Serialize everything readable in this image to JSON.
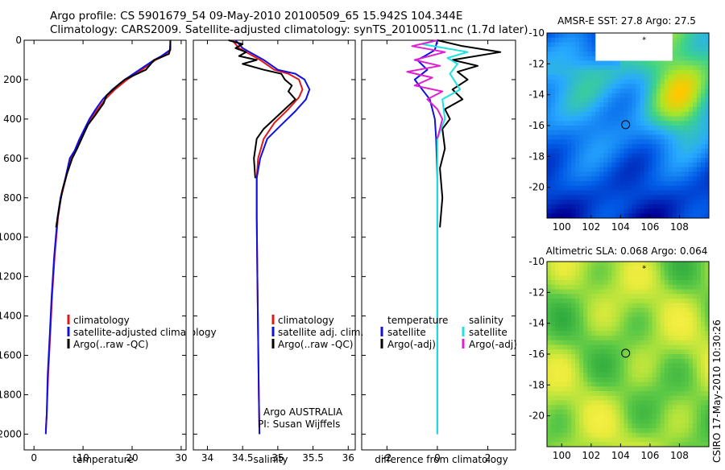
{
  "header": {
    "line1": "Argo profile: CS 5901679_54 09-May-2010 20100509_65 15.942S 104.344E",
    "line2": "Climatology: CARS2009. Satellite-adjusted climatology: synTS_20100511.nc (1.7d later)"
  },
  "footer": {
    "credit": "CSIRO 17-May-2010 10:30:26"
  },
  "colors": {
    "climatology": "#e01818",
    "satellite": "#1010e0",
    "argo": "#000000",
    "satellite_salinity": "#20e0e0",
    "argo_salinity": "#e020d0"
  },
  "chart_data": [
    {
      "id": "temperature",
      "type": "line",
      "xlabel": "temperature",
      "ylabel": "",
      "xlim": [
        -2,
        31
      ],
      "ylim": [
        2080,
        0
      ],
      "y_inverted": true,
      "xticks": [
        0,
        10,
        20,
        30
      ],
      "yticks": [
        0,
        200,
        400,
        600,
        800,
        1000,
        1200,
        1400,
        1600,
        1800,
        2000
      ],
      "legend": {
        "placement": "lower-center",
        "entries": [
          "climatology",
          "satellite-adjusted climatology",
          "Argo(..raw -QC)"
        ]
      },
      "series": [
        {
          "name": "climatology",
          "color": "#e01818",
          "x": [
            27.8,
            27.8,
            26.5,
            24.8,
            22,
            19,
            16.5,
            14.5,
            13,
            11.5,
            9.5,
            8.5,
            7.5,
            6.5,
            5.5,
            4.9,
            4.2,
            3.7,
            3.3,
            2.9,
            2.6,
            2.4
          ],
          "y": [
            0,
            50,
            80,
            100,
            150,
            200,
            250,
            300,
            350,
            400,
            500,
            560,
            600,
            700,
            800,
            900,
            1100,
            1300,
            1500,
            1700,
            1900,
            1980
          ]
        },
        {
          "name": "satellite-adjusted climatology",
          "color": "#1010e0",
          "x": [
            27.8,
            27.7,
            26,
            24.5,
            21.5,
            18.5,
            16,
            14,
            12.6,
            11.3,
            9.3,
            8.3,
            7.3,
            6.4,
            5.4,
            4.8,
            4.1,
            3.6,
            3.2,
            2.8,
            2.6,
            2.4
          ],
          "y": [
            0,
            50,
            80,
            100,
            150,
            200,
            250,
            300,
            350,
            400,
            500,
            560,
            600,
            700,
            800,
            900,
            1100,
            1300,
            1500,
            1700,
            1900,
            2000
          ]
        },
        {
          "name": "Argo(..raw -QC)",
          "color": "#000000",
          "x": [
            27.8,
            27.8,
            27.5,
            24.5,
            22.8,
            18.5,
            17.5,
            14.8,
            14.2,
            12.5,
            11,
            9.7,
            8.8,
            7.8,
            6.7,
            5.8,
            5.2,
            4.5
          ],
          "y": [
            0,
            40,
            70,
            100,
            150,
            200,
            220,
            280,
            320,
            380,
            430,
            500,
            550,
            600,
            680,
            760,
            840,
            950
          ]
        }
      ],
      "annotations": []
    },
    {
      "id": "salinity",
      "type": "line",
      "xlabel": "salinity",
      "ylabel": "",
      "xlim": [
        33.8,
        36.1
      ],
      "ylim": [
        2080,
        0
      ],
      "y_inverted": true,
      "xticks": [
        34,
        34.5,
        35,
        35.5,
        36
      ],
      "yticks": [
        0,
        200,
        400,
        600,
        800,
        1000,
        1200,
        1400,
        1600,
        1800,
        2000
      ],
      "legend": {
        "placement": "lower-center",
        "entries": [
          "climatology",
          "satellite adj. clim.",
          "Argo(..raw -QC)"
        ]
      },
      "series": [
        {
          "name": "climatology",
          "color": "#e01818",
          "x": [
            34.35,
            34.45,
            34.55,
            34.75,
            34.95,
            35.15,
            35.3,
            35.35,
            35.3,
            35.15,
            34.95,
            34.8,
            34.72,
            34.7,
            34.7,
            34.71,
            34.72,
            34.73,
            34.74
          ],
          "y": [
            0,
            40,
            60,
            100,
            150,
            170,
            200,
            250,
            290,
            350,
            420,
            500,
            600,
            700,
            900,
            1200,
            1500,
            1800,
            2000
          ]
        },
        {
          "name": "satellite adj. clim.",
          "color": "#1010e0",
          "x": [
            34.4,
            34.5,
            34.6,
            34.8,
            35,
            35.25,
            35.38,
            35.45,
            35.4,
            35.25,
            35.05,
            34.85,
            34.75,
            34.7,
            34.7,
            34.71,
            34.72,
            34.73,
            34.74
          ],
          "y": [
            0,
            40,
            60,
            100,
            150,
            170,
            200,
            250,
            300,
            360,
            430,
            500,
            600,
            700,
            900,
            1200,
            1500,
            1800,
            2000
          ]
        },
        {
          "name": "Argo(..raw -QC)",
          "color": "#000000",
          "x": [
            34.3,
            34.5,
            34.4,
            34.55,
            34.45,
            34.7,
            34.5,
            34.8,
            35.05,
            35.1,
            35.2,
            35.15,
            35.25,
            35.1,
            34.95,
            34.8,
            34.7,
            34.66,
            34.68
          ],
          "y": [
            0,
            20,
            40,
            60,
            80,
            100,
            120,
            150,
            170,
            200,
            230,
            260,
            300,
            350,
            400,
            450,
            500,
            600,
            700
          ]
        }
      ],
      "annotations": [
        "Argo AUSTRALIA",
        "PI: Susan Wijffels"
      ]
    },
    {
      "id": "difference",
      "type": "line",
      "xlabel": "difference from climatology",
      "ylabel": "",
      "xlim": [
        -3,
        3.1
      ],
      "ylim": [
        2080,
        0
      ],
      "y_inverted": true,
      "xticks": [
        -2,
        0,
        2
      ],
      "yticks": [
        0,
        200,
        400,
        600,
        800,
        1000,
        1200,
        1400,
        1600,
        1800,
        2000
      ],
      "legend": {
        "placement": "lower-center",
        "entries": [
          "temperature",
          "satellite",
          "Argo(-adj)",
          "salinity",
          "satellite",
          "Argo(-adj)"
        ]
      },
      "series": [
        {
          "name": "temperature satellite",
          "color": "#1010e0",
          "x": [
            0,
            -0.1,
            -0.5,
            -0.8,
            -0.4,
            -0.9,
            -0.6,
            -0.3,
            -0.2,
            -0.1,
            -0.05,
            0,
            0,
            0,
            0
          ],
          "y": [
            0,
            50,
            80,
            100,
            150,
            200,
            250,
            300,
            350,
            400,
            500,
            700,
            1000,
            1500,
            2000
          ]
        },
        {
          "name": "temperature Argo(-adj)",
          "color": "#000000",
          "x": [
            0,
            1,
            2.5,
            0.6,
            1.6,
            0.8,
            1.2,
            0.6,
            1,
            0.3,
            0.5,
            0.2,
            0.3,
            0.1,
            0.2,
            0.1
          ],
          "y": [
            0,
            30,
            60,
            100,
            130,
            160,
            200,
            250,
            300,
            350,
            400,
            450,
            550,
            650,
            800,
            950
          ]
        },
        {
          "name": "salinity satellite",
          "color": "#20e0e0",
          "x": [
            0,
            -0.6,
            1.2,
            0.4,
            0.8,
            0.5,
            0.9,
            0.2,
            0.3,
            0,
            0,
            0,
            0
          ],
          "y": [
            0,
            20,
            60,
            90,
            120,
            170,
            250,
            300,
            400,
            500,
            700,
            1000,
            2000
          ]
        },
        {
          "name": "salinity Argo(-adj)",
          "color": "#e020d0",
          "x": [
            0,
            -1,
            0.3,
            -0.9,
            0.1,
            -1.2,
            -0.2,
            -0.9,
            0.2,
            -0.4,
            0,
            0.2,
            0
          ],
          "y": [
            0,
            30,
            60,
            100,
            130,
            160,
            190,
            230,
            260,
            300,
            350,
            400,
            500
          ]
        }
      ],
      "annotations": []
    },
    {
      "id": "sst_map",
      "type": "heatmap",
      "title": "AMSR-E SST: 27.8 Argo: 27.5",
      "xlim": [
        99,
        110
      ],
      "ylim": [
        -22,
        -10
      ],
      "xticks": [
        100,
        102,
        104,
        106,
        108
      ],
      "yticks": [
        -10,
        -12,
        -14,
        -16,
        -18,
        -20
      ],
      "profile_location": [
        104.344,
        -15.942
      ],
      "star_location": [
        105.6,
        -10.4
      ]
    },
    {
      "id": "sla_map",
      "type": "heatmap",
      "title": "Altimetric SLA: 0.068 Argo: 0.064",
      "xlim": [
        99,
        110
      ],
      "ylim": [
        -22,
        -10
      ],
      "xticks": [
        100,
        102,
        104,
        106,
        108
      ],
      "yticks": [
        -10,
        -12,
        -14,
        -16,
        -18,
        -20
      ],
      "profile_location": [
        104.344,
        -15.942
      ],
      "star_location": [
        105.6,
        -10.4
      ]
    }
  ]
}
